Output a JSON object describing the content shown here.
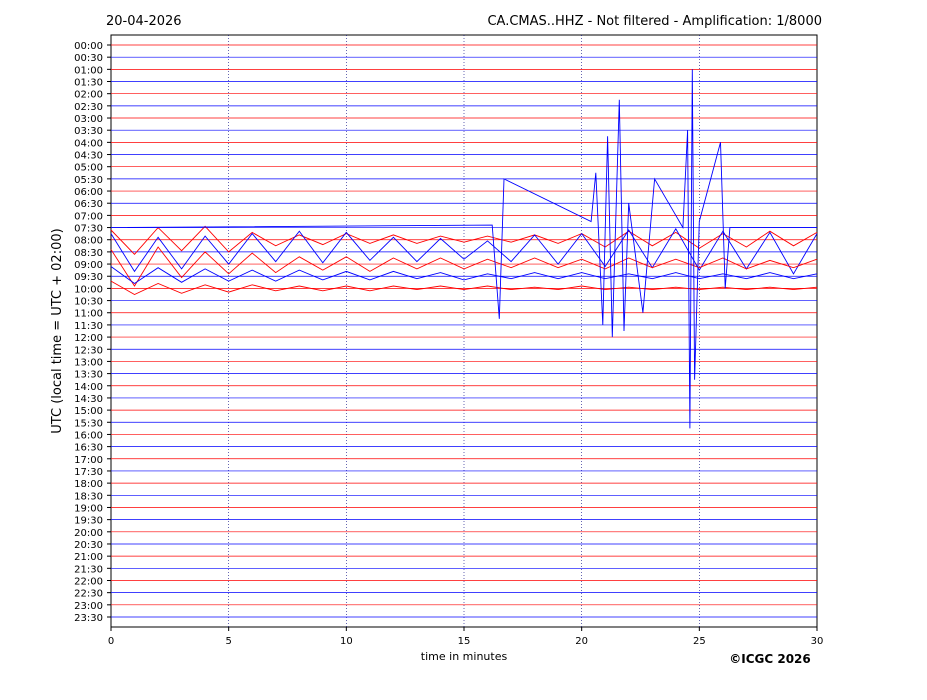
{
  "chart_data": {
    "type": "helicorder",
    "title": "20-04-2026",
    "subtitle": "CA.CMAS..HHZ - Not filtered - Amplification: 1/8000",
    "y_label": "UTC (local time = UTC + 02:00)",
    "x_label": "time in minutes",
    "copyright": "©ICGC 2026",
    "categories": [
      "00:00",
      "00:30",
      "01:00",
      "01:30",
      "02:00",
      "02:30",
      "03:00",
      "03:30",
      "04:00",
      "04:30",
      "05:00",
      "05:30",
      "06:00",
      "06:30",
      "07:00",
      "07:30",
      "08:00",
      "08:30",
      "09:00",
      "09:30",
      "10:00",
      "10:30",
      "11:00",
      "11:30",
      "12:00",
      "12:30",
      "13:00",
      "13:30",
      "14:00",
      "14:30",
      "15:00",
      "15:30",
      "16:00",
      "16:30",
      "17:00",
      "17:30",
      "18:00",
      "18:30",
      "19:00",
      "19:30",
      "20:00",
      "20:30",
      "21:00",
      "21:30",
      "22:00",
      "22:30",
      "23:00",
      "23:30"
    ],
    "colors": [
      "#ff0000",
      "#0000ff"
    ],
    "xlim": [
      0,
      30
    ],
    "xticks": [
      0,
      5,
      10,
      15,
      20,
      25,
      30
    ],
    "grid": true,
    "x": [
      0,
      1,
      2,
      3,
      4,
      5,
      6,
      7,
      8,
      9,
      10,
      11,
      12,
      13,
      14,
      15,
      16,
      17,
      18,
      19,
      20,
      21,
      22,
      23,
      24,
      25,
      26,
      27,
      28,
      29,
      30
    ],
    "traces": [
      {
        "row": 16,
        "values": [
          0.8,
          -1.2,
          1,
          -0.9,
          1.1,
          -1,
          0.6,
          -0.5,
          0.4,
          -0.4,
          0.5,
          -0.3,
          0.4,
          -0.3,
          0.3,
          -0.2,
          0.3,
          -0.2,
          0.4,
          -0.3,
          0.5,
          -0.6,
          0.7,
          -0.5,
          0.6,
          -0.7,
          0.5,
          -0.6,
          0.7,
          -0.5,
          0.6
        ]
      },
      {
        "row": 17,
        "values": [
          1.5,
          -1.6,
          1.2,
          -1.4,
          1.3,
          -1,
          1.5,
          -0.8,
          1.7,
          -0.9,
          1.6,
          -0.7,
          1.2,
          -0.8,
          1.1,
          -0.6,
          0.9,
          -0.8,
          1.4,
          -1,
          1.5,
          -1.2,
          1.8,
          -1.3,
          1.9,
          -1.5,
          1.7,
          -1.4,
          1.6,
          -1.8,
          1.5
        ]
      },
      {
        "row": 18,
        "values": [
          1.2,
          -1.8,
          1.4,
          -1.1,
          1,
          -0.8,
          0.9,
          -0.7,
          0.6,
          -0.5,
          0.6,
          -0.6,
          0.5,
          -0.4,
          0.5,
          -0.4,
          0.4,
          -0.3,
          0.5,
          -0.3,
          0.4,
          -0.4,
          0.5,
          -0.3,
          0.4,
          -0.3,
          0.5,
          -0.4,
          0.3,
          -0.3,
          0.4
        ]
      },
      {
        "row": 19,
        "values": [
          0.8,
          -0.6,
          0.7,
          -0.5,
          0.6,
          -0.4,
          0.5,
          -0.4,
          0.5,
          -0.3,
          0.4,
          -0.3,
          0.4,
          -0.2,
          0.3,
          -0.3,
          0.2,
          -0.2,
          0.3,
          -0.2,
          0.3,
          -0.2,
          0.2,
          -0.2,
          0.3,
          -0.2,
          0.2,
          -0.2,
          0.3,
          -0.2,
          0.2
        ]
      },
      {
        "row": 20,
        "values": [
          0.6,
          -0.5,
          0.4,
          -0.4,
          0.3,
          -0.3,
          0.3,
          -0.2,
          0.2,
          -0.2,
          0.2,
          -0.2,
          0.2,
          -0.1,
          0.2,
          -0.1,
          0.2,
          -0.1,
          0.1,
          -0.1,
          0.2,
          -0.1,
          0.1,
          -0.1,
          0.1,
          -0.1,
          0.1,
          -0.1,
          0.1,
          -0.1,
          0.1
        ]
      }
    ],
    "event": {
      "row": 15,
      "x": [
        0,
        16.2,
        16.5,
        16.7,
        20.4,
        20.6,
        20.9,
        21.1,
        21.3,
        21.6,
        21.8,
        22.0,
        22.6,
        23.1,
        24.3,
        24.5,
        24.6,
        24.7,
        24.8,
        25.0,
        25.9,
        26.1,
        26.3,
        30
      ],
      "values": [
        0,
        0.2,
        -7.5,
        4,
        0.5,
        4.5,
        -8,
        7.5,
        -9,
        10.5,
        -8.5,
        2,
        -7,
        4,
        0,
        8,
        -16.5,
        13,
        -12.5,
        0.5,
        7,
        -5,
        0,
        0
      ]
    }
  }
}
